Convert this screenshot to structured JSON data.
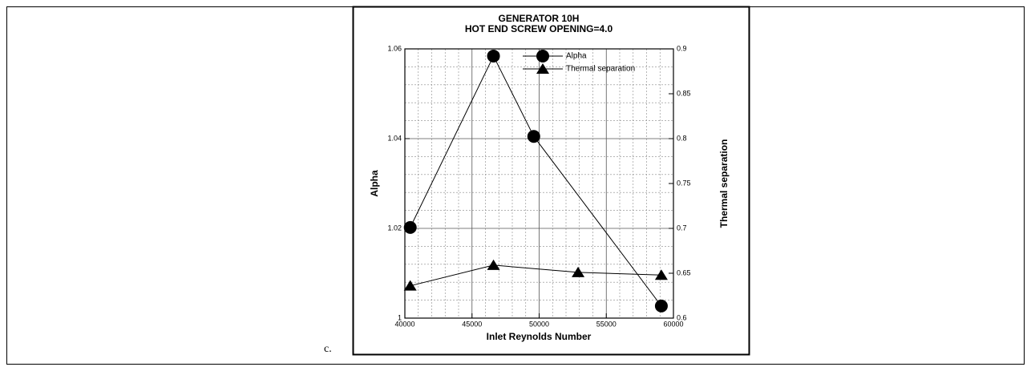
{
  "caption": "c.",
  "chart_data": {
    "type": "line",
    "title": "GENERATOR 10H",
    "subtitle": "HOT END SCREW OPENING=4.0",
    "x_label": "Inlet Reynolds Number",
    "y_label": "Alpha",
    "y2_label": "Thermal separation",
    "xlim": [
      40000,
      60000
    ],
    "xticks": [
      40000,
      45000,
      50000,
      55000,
      60000
    ],
    "ylim": [
      1,
      1.06
    ],
    "yticks": [
      1,
      1.02,
      1.04,
      1.06
    ],
    "y2lim": [
      0.6,
      0.9
    ],
    "y2ticks": [
      0.6,
      0.65,
      0.7,
      0.75,
      0.8,
      0.85,
      0.9
    ],
    "grid": true,
    "minor_divisions": 5,
    "legend": "upper right",
    "series": [
      {
        "name": "Alpha",
        "color": "#000000",
        "marker": "circle",
        "x": [
          40400,
          46600,
          49600,
          59100
        ],
        "values": [
          1.0202,
          1.0584,
          1.0405,
          1.0027
        ]
      },
      {
        "name": "Thermal separation",
        "color": "#000000",
        "marker": "triangle",
        "axis": "y2",
        "x": [
          40400,
          46600,
          52900,
          59100
        ],
        "values": [
          0.636,
          0.659,
          0.651,
          0.648
        ]
      }
    ]
  }
}
